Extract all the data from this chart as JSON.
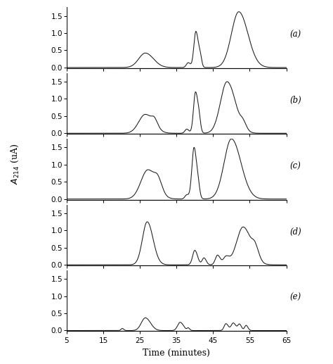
{
  "xlabel": "Time (minutes)",
  "xlim": [
    5,
    65
  ],
  "ylim": [
    -0.02,
    1.75
  ],
  "xticks": [
    5,
    15,
    25,
    35,
    45,
    55,
    65
  ],
  "yticks": [
    0.0,
    0.5,
    1.0,
    1.5
  ],
  "labels": [
    "(a)",
    "(b)",
    "(c)",
    "(d)",
    "(e)"
  ],
  "background_color": "#ffffff",
  "line_color": "#1a1a1a",
  "n_panels": 5
}
